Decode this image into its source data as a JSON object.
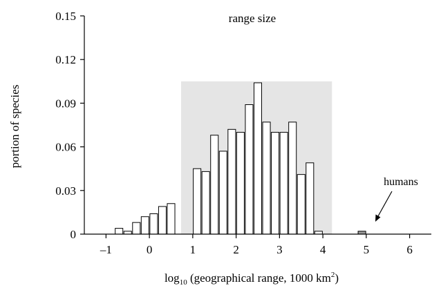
{
  "chart_data": {
    "type": "bar",
    "title": "range size",
    "xlabel": {
      "prefix": "log",
      "subscript": "10",
      "main": " (geographical range, 1000 km",
      "superscript": "2",
      "suffix": ")"
    },
    "ylabel": "portion of species",
    "xlim": [
      -1.5,
      6.5
    ],
    "ylim": [
      0,
      0.15
    ],
    "xticks": [
      -1,
      0,
      1,
      2,
      3,
      4,
      5,
      6
    ],
    "xtick_labels": [
      "–1",
      "0",
      "1",
      "2",
      "3",
      "4",
      "5",
      "6"
    ],
    "yticks": [
      0,
      0.03,
      0.06,
      0.09,
      0.12,
      0.15
    ],
    "ytick_labels": [
      "0",
      "0.03",
      "0.06",
      "0.09",
      "0.12",
      "0.15"
    ],
    "bin_width": 0.2,
    "bins": [
      {
        "x": -0.8,
        "value": 0.004
      },
      {
        "x": -0.6,
        "value": 0.002
      },
      {
        "x": -0.4,
        "value": 0.008
      },
      {
        "x": -0.2,
        "value": 0.012
      },
      {
        "x": 0.0,
        "value": 0.014
      },
      {
        "x": 0.2,
        "value": 0.019
      },
      {
        "x": 0.4,
        "value": 0.021
      },
      {
        "x": 1.0,
        "value": 0.045
      },
      {
        "x": 1.2,
        "value": 0.043
      },
      {
        "x": 1.4,
        "value": 0.068
      },
      {
        "x": 1.6,
        "value": 0.057
      },
      {
        "x": 1.8,
        "value": 0.072
      },
      {
        "x": 2.0,
        "value": 0.07
      },
      {
        "x": 2.2,
        "value": 0.089
      },
      {
        "x": 2.4,
        "value": 0.104
      },
      {
        "x": 2.6,
        "value": 0.077
      },
      {
        "x": 2.8,
        "value": 0.07
      },
      {
        "x": 3.0,
        "value": 0.07
      },
      {
        "x": 3.2,
        "value": 0.077
      },
      {
        "x": 3.4,
        "value": 0.041
      },
      {
        "x": 3.6,
        "value": 0.049
      },
      {
        "x": 3.8,
        "value": 0.002
      },
      {
        "x": 4.8,
        "value": 0.002,
        "highlight": true
      }
    ],
    "shaded_region": {
      "x_start": 0.73,
      "x_end": 4.21,
      "y_top": 0.105
    },
    "annotation": {
      "text": "humans",
      "points_to_x": 4.8
    },
    "grid": false,
    "colors": {
      "bar_fill": "#ffffff",
      "bar_edge": "#000000",
      "highlight_fill": "#9a9a9a",
      "shade": "#e5e5e5"
    }
  }
}
